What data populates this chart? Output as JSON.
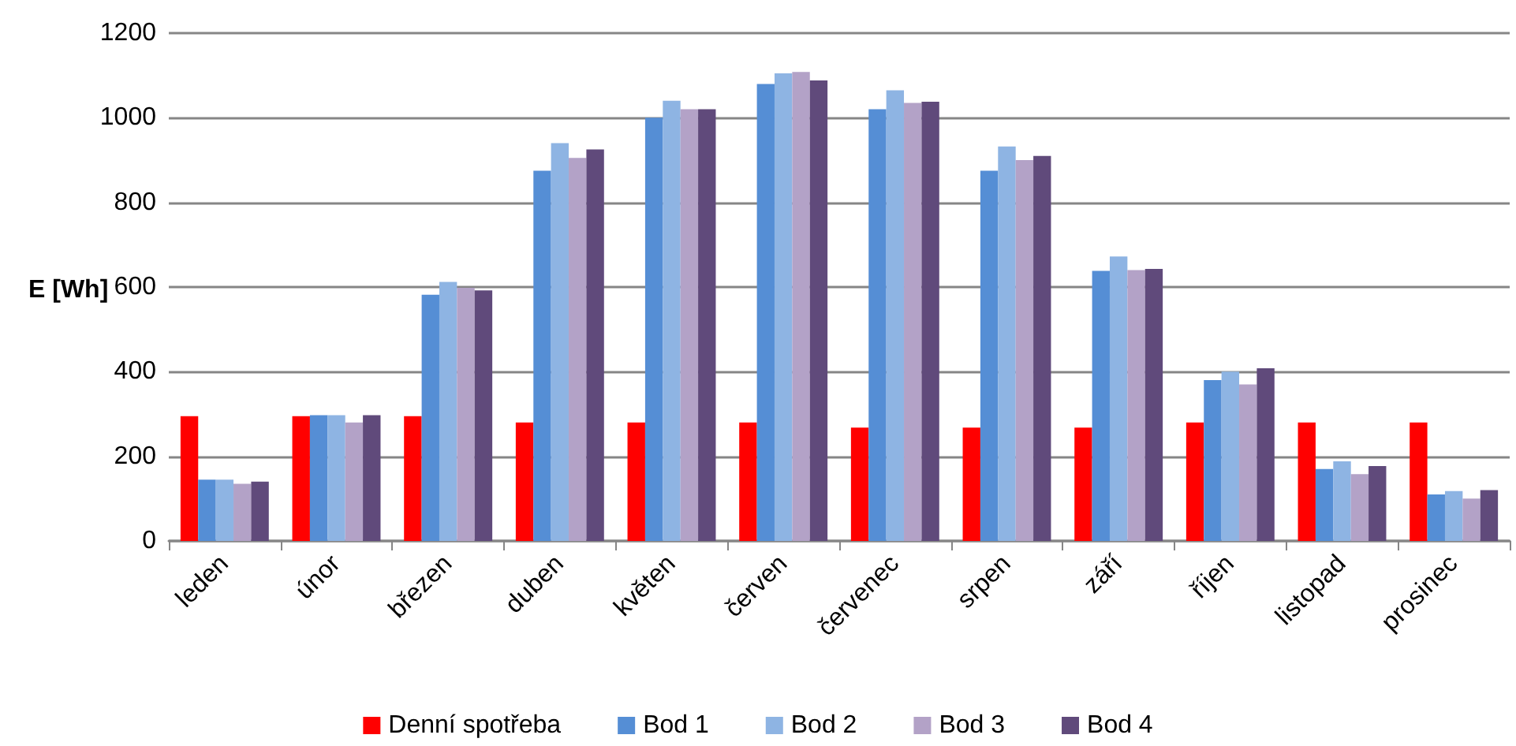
{
  "chart_data": {
    "type": "bar",
    "ylabel": "E [Wh]",
    "categories": [
      "leden",
      "únor",
      "březen",
      "duben",
      "květen",
      "červen",
      "červenec",
      "srpen",
      "září",
      "říjen",
      "listopad",
      "prosinec"
    ],
    "series": [
      {
        "name": "Denní spotřeba",
        "color": "#ff0000",
        "values": [
          295,
          295,
          295,
          280,
          280,
          280,
          268,
          268,
          268,
          280,
          280,
          280
        ]
      },
      {
        "name": "Bod 1",
        "color": "#558ed5",
        "values": [
          145,
          297,
          582,
          875,
          1000,
          1080,
          1020,
          875,
          638,
          380,
          170,
          110
        ]
      },
      {
        "name": "Bod 2",
        "color": "#8eb4e3",
        "values": [
          145,
          297,
          612,
          940,
          1040,
          1105,
          1065,
          932,
          672,
          400,
          188,
          118
        ]
      },
      {
        "name": "Bod 3",
        "color": "#b3a2c7",
        "values": [
          135,
          280,
          598,
          905,
          1020,
          1108,
          1035,
          900,
          640,
          370,
          158,
          100
        ]
      },
      {
        "name": "Bod 4",
        "color": "#604a7b",
        "values": [
          140,
          297,
          592,
          925,
          1020,
          1088,
          1038,
          910,
          643,
          408,
          177,
          120
        ]
      }
    ],
    "ylim": [
      0,
      1200
    ],
    "yticks": [
      0,
      200,
      400,
      600,
      800,
      1000,
      1200
    ],
    "grid": "y",
    "legend": "bottom"
  }
}
